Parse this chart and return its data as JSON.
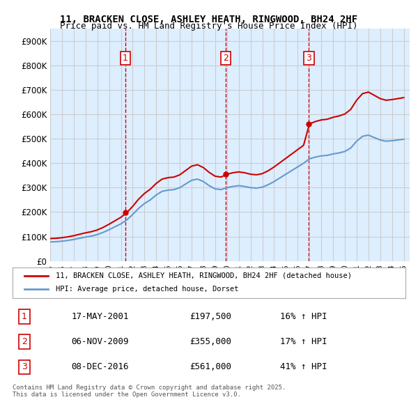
{
  "title1": "11, BRACKEN CLOSE, ASHLEY HEATH, RINGWOOD, BH24 2HF",
  "title2": "Price paid vs. HM Land Registry's House Price Index (HPI)",
  "legend_label1": "11, BRACKEN CLOSE, ASHLEY HEATH, RINGWOOD, BH24 2HF (detached house)",
  "legend_label2": "HPI: Average price, detached house, Dorset",
  "line1_color": "#cc0000",
  "line2_color": "#6699cc",
  "sale_dates": [
    "2001-05-17",
    "2009-11-06",
    "2016-12-08"
  ],
  "sale_prices": [
    197500,
    355000,
    561000
  ],
  "sale_labels": [
    "1",
    "2",
    "3"
  ],
  "sale_info": [
    [
      "1",
      "17-MAY-2001",
      "£197,500",
      "16% ↑ HPI"
    ],
    [
      "2",
      "06-NOV-2009",
      "£355,000",
      "17% ↑ HPI"
    ],
    [
      "3",
      "08-DEC-2016",
      "£561,000",
      "41% ↑ HPI"
    ]
  ],
  "footer": "Contains HM Land Registry data © Crown copyright and database right 2025.\nThis data is licensed under the Open Government Licence v3.0.",
  "ylim": [
    0,
    950000
  ],
  "yticks": [
    0,
    100000,
    200000,
    300000,
    400000,
    500000,
    600000,
    700000,
    800000,
    900000
  ],
  "ytick_labels": [
    "£0",
    "£100K",
    "£200K",
    "£300K",
    "£400K",
    "£500K",
    "£600K",
    "£700K",
    "£800K",
    "£900K"
  ],
  "background_color": "#ddeeff",
  "plot_bg_color": "#ddeeff"
}
